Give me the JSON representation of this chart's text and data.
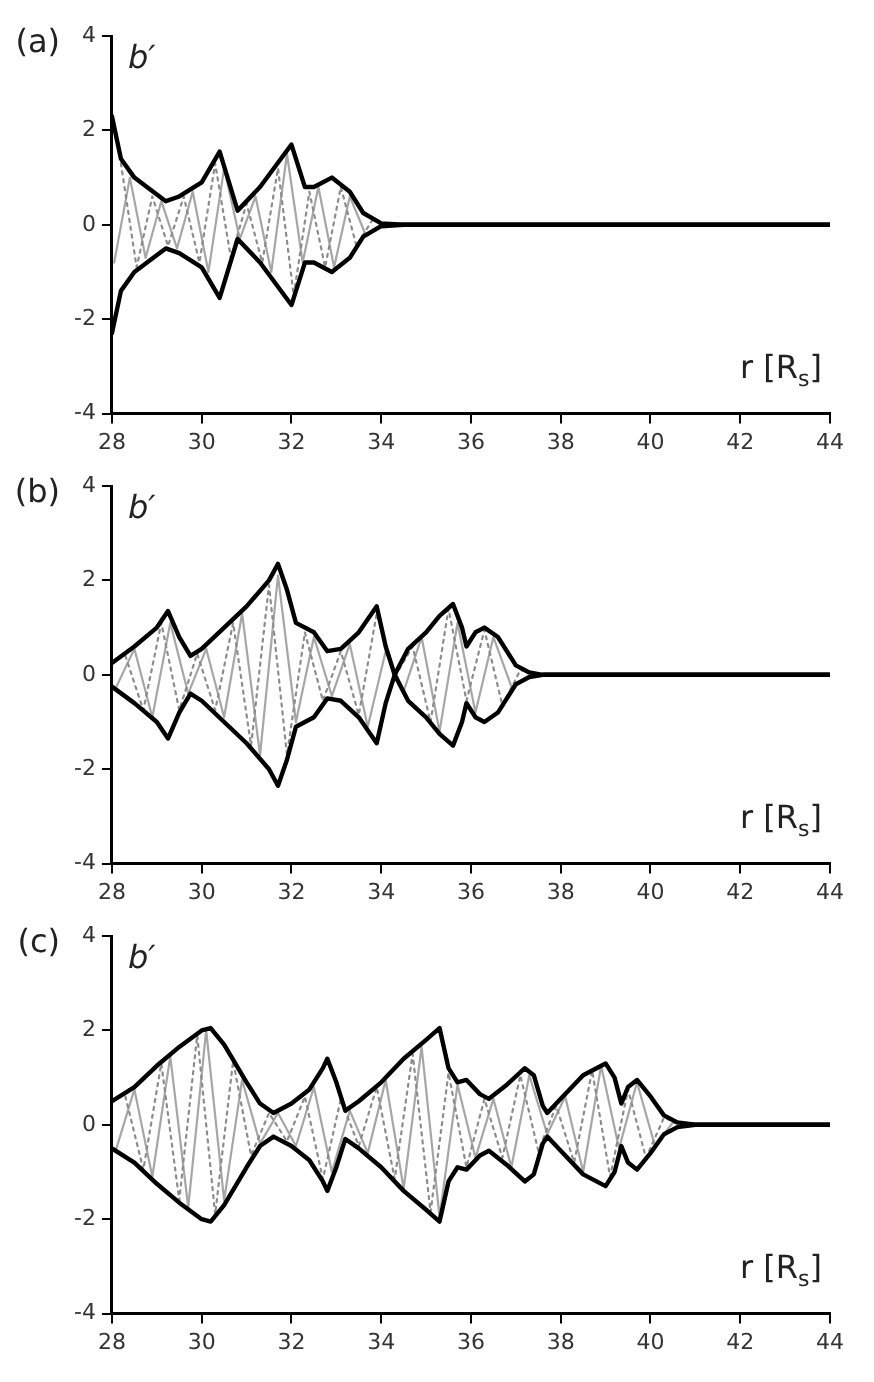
{
  "chart_data": [
    {
      "type": "line",
      "title": "(a)",
      "xlabel": "r [R$_{s}$]",
      "ylabel": "b′",
      "xlim": [
        28,
        44
      ],
      "xticks": [
        28,
        30,
        32,
        34,
        36,
        38,
        40,
        42,
        44
      ],
      "ylim": [
        -4,
        4
      ],
      "yticks": [
        -4,
        -2,
        0,
        2,
        4
      ],
      "grid": false,
      "legend": false,
      "series": [
        {
          "color": "#a6a6a6",
          "line_style": "solid",
          "x": [
            28.05,
            28.4,
            28.75,
            29.1,
            29.45,
            29.8,
            30.15,
            30.5,
            30.85,
            31.2,
            31.55,
            31.9,
            32.25,
            32.6,
            32.95,
            33.3,
            33.65,
            34.0
          ],
          "values": [
            -0.8,
            1.0,
            -0.7,
            0.5,
            -0.5,
            0.7,
            -1.0,
            1.2,
            -0.3,
            0.6,
            -1.0,
            1.5,
            -0.8,
            0.8,
            -0.9,
            0.6,
            -0.2,
            0
          ]
        },
        {
          "color": "#8c8c8c",
          "line_style": "dotted",
          "x": [
            28.2,
            28.55,
            28.9,
            29.25,
            29.6,
            29.95,
            30.3,
            30.65,
            31.0,
            31.35,
            31.7,
            32.05,
            32.4,
            32.75,
            33.1,
            33.45,
            33.8,
            34.1
          ],
          "values": [
            1.3,
            -0.9,
            0.6,
            -0.45,
            0.6,
            -0.8,
            1.3,
            -0.7,
            0.45,
            -0.8,
            1.2,
            -1.5,
            0.7,
            -0.9,
            0.8,
            -0.45,
            0.1,
            0
          ]
        },
        {
          "color": "#000000",
          "line_style": "solid",
          "x": [
            28,
            28.2,
            28.5,
            29.2,
            29.5,
            30,
            30.4,
            30.8,
            31.3,
            32,
            32.3,
            32.5,
            32.9,
            33.3,
            33.6,
            34,
            34.5,
            44
          ],
          "values": [
            2.3,
            1.4,
            1.0,
            0.5,
            0.6,
            0.9,
            1.55,
            0.3,
            0.8,
            1.7,
            0.8,
            0.8,
            1.0,
            0.7,
            0.25,
            0.03,
            0,
            0
          ]
        },
        {
          "color": "#000000",
          "line_style": "solid",
          "x": [
            28,
            28.2,
            28.5,
            29.2,
            29.5,
            30,
            30.4,
            30.8,
            31.3,
            32,
            32.3,
            32.5,
            32.9,
            33.3,
            33.6,
            34,
            34.5,
            44
          ],
          "values": [
            -2.3,
            -1.4,
            -1.0,
            -0.5,
            -0.6,
            -0.9,
            -1.55,
            -0.3,
            -0.8,
            -1.7,
            -0.8,
            -0.8,
            -1.0,
            -0.7,
            -0.25,
            -0.03,
            0,
            0
          ]
        }
      ]
    },
    {
      "type": "line",
      "title": "(b)",
      "xlabel": "r [R$_{s}$]",
      "ylabel": "b′",
      "xlim": [
        28,
        44
      ],
      "xticks": [
        28,
        30,
        32,
        34,
        36,
        38,
        40,
        42,
        44
      ],
      "ylim": [
        -4,
        4
      ],
      "yticks": [
        -4,
        -2,
        0,
        2,
        4
      ],
      "grid": false,
      "legend": false,
      "series": [
        {
          "color": "#a6a6a6",
          "line_style": "solid",
          "x": [
            28.1,
            28.5,
            28.9,
            29.3,
            29.7,
            30.1,
            30.5,
            30.9,
            31.3,
            31.7,
            32.1,
            32.5,
            32.9,
            33.3,
            33.7,
            34.1,
            34.5,
            34.9,
            35.3,
            35.7,
            36.1,
            36.5,
            36.9,
            37.3
          ],
          "values": [
            -0.25,
            0.55,
            -0.9,
            1.1,
            -0.4,
            0.55,
            -0.9,
            1.3,
            -1.7,
            2.1,
            -1.0,
            0.8,
            -0.45,
            0.65,
            -1.1,
            0.5,
            -0.35,
            0.8,
            -1.2,
            1.1,
            -0.8,
            0.8,
            -0.25,
            0
          ]
        },
        {
          "color": "#8c8c8c",
          "line_style": "dotted",
          "x": [
            28.3,
            28.7,
            29.1,
            29.5,
            29.9,
            30.3,
            30.7,
            31.1,
            31.5,
            31.9,
            32.3,
            32.7,
            33.1,
            33.5,
            33.9,
            34.3,
            34.7,
            35.1,
            35.5,
            35.9,
            36.3,
            36.7,
            37.1,
            37.5
          ],
          "values": [
            0.4,
            -0.75,
            1.1,
            -0.75,
            0.45,
            -0.75,
            1.1,
            -1.5,
            1.9,
            -1.7,
            0.9,
            -0.55,
            0.5,
            -0.85,
            1.3,
            -0.05,
            0.6,
            -1.0,
            1.4,
            -0.55,
            0.95,
            -0.65,
            0.1,
            0
          ]
        },
        {
          "color": "#000000",
          "line_style": "solid",
          "x": [
            28,
            28.5,
            29,
            29.25,
            29.5,
            29.75,
            30,
            30.5,
            31,
            31.5,
            31.7,
            31.9,
            32.1,
            32.5,
            32.8,
            33.1,
            33.5,
            33.9,
            34.1,
            34.3,
            34.6,
            35,
            35.3,
            35.6,
            35.8,
            35.9,
            36.1,
            36.3,
            36.6,
            37,
            37.3,
            37.6,
            44
          ],
          "values": [
            0.25,
            0.6,
            1.0,
            1.35,
            0.8,
            0.4,
            0.55,
            1.0,
            1.45,
            2.0,
            2.35,
            1.8,
            1.1,
            0.9,
            0.5,
            0.55,
            0.9,
            1.45,
            0.6,
            0,
            0.55,
            0.9,
            1.25,
            1.5,
            1.0,
            0.6,
            0.9,
            1.0,
            0.8,
            0.2,
            0.05,
            0,
            0
          ]
        },
        {
          "color": "#000000",
          "line_style": "solid",
          "x": [
            28,
            28.5,
            29,
            29.25,
            29.5,
            29.75,
            30,
            30.5,
            31,
            31.5,
            31.7,
            31.9,
            32.1,
            32.5,
            32.8,
            33.1,
            33.5,
            33.9,
            34.1,
            34.3,
            34.6,
            35,
            35.3,
            35.6,
            35.8,
            35.9,
            36.1,
            36.3,
            36.6,
            37,
            37.3,
            37.6,
            44
          ],
          "values": [
            -0.25,
            -0.6,
            -1.0,
            -1.35,
            -0.8,
            -0.4,
            -0.55,
            -1.0,
            -1.45,
            -2.0,
            -2.35,
            -1.8,
            -1.1,
            -0.9,
            -0.5,
            -0.55,
            -0.9,
            -1.45,
            -0.6,
            0,
            -0.55,
            -0.9,
            -1.25,
            -1.5,
            -1.0,
            -0.6,
            -0.9,
            -1.0,
            -0.8,
            -0.2,
            -0.05,
            0,
            0
          ]
        }
      ]
    },
    {
      "type": "line",
      "title": "(c)",
      "xlabel": "r [R$_{s}$]",
      "ylabel": "b′",
      "xlim": [
        28,
        44
      ],
      "xticks": [
        28,
        30,
        32,
        34,
        36,
        38,
        40,
        42,
        44
      ],
      "ylim": [
        -4,
        4
      ],
      "yticks": [
        -4,
        -2,
        0,
        2,
        4
      ],
      "grid": false,
      "legend": false,
      "series": [
        {
          "color": "#a6a6a6",
          "line_style": "solid",
          "x": [
            28.1,
            28.5,
            28.9,
            29.3,
            29.7,
            30.1,
            30.5,
            30.9,
            31.3,
            31.7,
            32.1,
            32.5,
            32.9,
            33.3,
            33.7,
            34.1,
            34.5,
            34.9,
            35.3,
            35.7,
            36.1,
            36.5,
            36.9,
            37.3,
            37.7,
            38.1,
            38.5,
            38.9,
            39.3,
            39.7,
            40.1,
            40.5,
            40.9
          ],
          "values": [
            -0.5,
            0.75,
            -1.1,
            1.45,
            -1.75,
            2.0,
            -1.6,
            0.95,
            -0.4,
            0.25,
            -0.45,
            0.8,
            -1.0,
            0.3,
            -0.6,
            0.95,
            -1.35,
            1.65,
            -1.95,
            0.85,
            -0.7,
            0.55,
            -0.9,
            1.05,
            -0.2,
            0.6,
            -1.0,
            1.25,
            -0.5,
            0.9,
            -0.45,
            0.05,
            0
          ]
        },
        {
          "color": "#8c8c8c",
          "line_style": "dotted",
          "x": [
            28.3,
            28.7,
            29.1,
            29.5,
            29.9,
            30.3,
            30.7,
            31.1,
            31.5,
            31.9,
            32.3,
            32.7,
            33.1,
            33.5,
            33.9,
            34.3,
            34.7,
            35.1,
            35.5,
            35.9,
            36.3,
            36.7,
            37.1,
            37.5,
            37.9,
            38.3,
            38.7,
            39.1,
            39.5,
            39.9,
            40.3,
            40.7
          ],
          "values": [
            0.6,
            -0.95,
            1.3,
            -1.6,
            1.9,
            -1.9,
            1.35,
            -0.65,
            0.25,
            -0.35,
            0.6,
            -1.15,
            0.55,
            -0.45,
            0.8,
            -1.15,
            1.5,
            -1.85,
            1.1,
            -0.9,
            0.55,
            -0.7,
            1.05,
            -0.55,
            0.4,
            -0.8,
            1.15,
            -1.1,
            0.75,
            -0.7,
            0.15,
            0
          ]
        },
        {
          "color": "#000000",
          "line_style": "solid",
          "x": [
            28,
            28.5,
            29,
            29.5,
            30,
            30.2,
            30.5,
            31,
            31.3,
            31.6,
            32,
            32.4,
            32.7,
            32.8,
            33,
            33.2,
            33.5,
            34,
            34.5,
            35,
            35.3,
            35.5,
            35.7,
            35.9,
            36.2,
            36.4,
            36.8,
            37.2,
            37.4,
            37.6,
            37.7,
            38,
            38.5,
            39,
            39.2,
            39.35,
            39.5,
            39.7,
            40,
            40.3,
            40.6,
            41,
            44
          ],
          "values": [
            0.5,
            0.8,
            1.25,
            1.65,
            2.0,
            2.05,
            1.7,
            0.9,
            0.45,
            0.25,
            0.45,
            0.75,
            1.2,
            1.4,
            0.9,
            0.3,
            0.5,
            0.9,
            1.4,
            1.8,
            2.05,
            1.2,
            0.9,
            0.95,
            0.65,
            0.55,
            0.85,
            1.2,
            1.05,
            0.4,
            0.25,
            0.55,
            1.05,
            1.3,
            1.0,
            0.45,
            0.8,
            0.95,
            0.6,
            0.2,
            0.05,
            0,
            0
          ]
        },
        {
          "color": "#000000",
          "line_style": "solid",
          "x": [
            28,
            28.5,
            29,
            29.5,
            30,
            30.2,
            30.5,
            31,
            31.3,
            31.6,
            32,
            32.4,
            32.7,
            32.8,
            33,
            33.2,
            33.5,
            34,
            34.5,
            35,
            35.3,
            35.5,
            35.7,
            35.9,
            36.2,
            36.4,
            36.8,
            37.2,
            37.4,
            37.6,
            37.7,
            38,
            38.5,
            39,
            39.2,
            39.35,
            39.5,
            39.7,
            40,
            40.3,
            40.6,
            41,
            44
          ],
          "values": [
            -0.5,
            -0.8,
            -1.25,
            -1.65,
            -2.0,
            -2.05,
            -1.7,
            -0.9,
            -0.45,
            -0.25,
            -0.45,
            -0.75,
            -1.2,
            -1.4,
            -0.9,
            -0.3,
            -0.5,
            -0.9,
            -1.4,
            -1.8,
            -2.05,
            -1.2,
            -0.9,
            -0.95,
            -0.65,
            -0.55,
            -0.85,
            -1.2,
            -1.05,
            -0.4,
            -0.25,
            -0.55,
            -1.05,
            -1.3,
            -1.0,
            -0.45,
            -0.8,
            -0.95,
            -0.6,
            -0.2,
            -0.05,
            0,
            0
          ]
        }
      ]
    }
  ]
}
